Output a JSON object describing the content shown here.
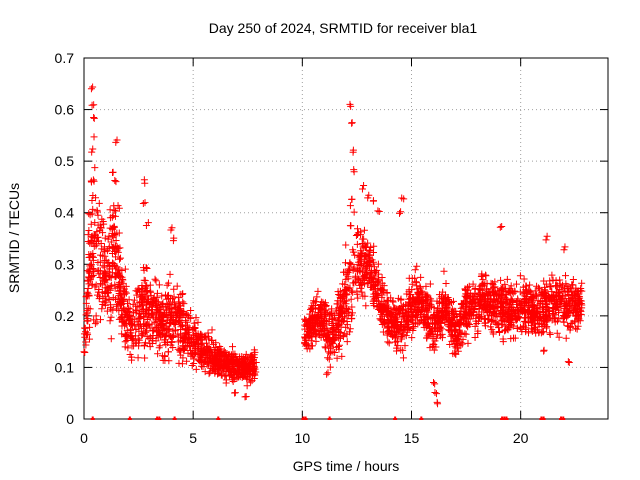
{
  "chart_data": {
    "type": "scatter",
    "title": "Day 250 of 2024, SRMTID for receiver bla1",
    "xlabel": "GPS time / hours",
    "ylabel": "SRMTID / TECUs",
    "xlim": [
      0,
      24
    ],
    "ylim": [
      0,
      0.7
    ],
    "xticks": [
      0,
      5,
      10,
      15,
      20
    ],
    "yticks": [
      0,
      0.1,
      0.2,
      0.3,
      0.4,
      0.5,
      0.6,
      0.7
    ],
    "xtick_labels": [
      "0",
      "5",
      "10",
      "15",
      "20"
    ],
    "ytick_labels": [
      "0",
      "0.1",
      "0.2",
      "0.3",
      "0.4",
      "0.5",
      "0.6",
      "0.7"
    ],
    "grid": true,
    "marker": "+",
    "color": "#ff0000",
    "series": [
      {
        "name": "SRMTID",
        "trend": [
          [
            0.0,
            0.15,
            0.04
          ],
          [
            0.3,
            0.3,
            0.12
          ],
          [
            0.5,
            0.36,
            0.14
          ],
          [
            1.0,
            0.26,
            0.09
          ],
          [
            1.4,
            0.32,
            0.11
          ],
          [
            1.8,
            0.22,
            0.07
          ],
          [
            2.2,
            0.17,
            0.06
          ],
          [
            2.7,
            0.22,
            0.08
          ],
          [
            3.2,
            0.2,
            0.07
          ],
          [
            3.6,
            0.18,
            0.06
          ],
          [
            4.2,
            0.2,
            0.07
          ],
          [
            4.8,
            0.16,
            0.05
          ],
          [
            5.5,
            0.13,
            0.04
          ],
          [
            6.2,
            0.11,
            0.03
          ],
          [
            7.0,
            0.1,
            0.03
          ],
          [
            7.9,
            0.1,
            0.03
          ],
          [
            10.2,
            0.17,
            0.03
          ],
          [
            10.8,
            0.2,
            0.05
          ],
          [
            11.3,
            0.16,
            0.05
          ],
          [
            11.8,
            0.2,
            0.06
          ],
          [
            12.2,
            0.28,
            0.12
          ],
          [
            12.5,
            0.3,
            0.08
          ],
          [
            13.0,
            0.3,
            0.06
          ],
          [
            13.5,
            0.24,
            0.05
          ],
          [
            14.0,
            0.19,
            0.05
          ],
          [
            14.5,
            0.18,
            0.05
          ],
          [
            15.0,
            0.22,
            0.05
          ],
          [
            15.5,
            0.23,
            0.05
          ],
          [
            16.0,
            0.18,
            0.05
          ],
          [
            16.5,
            0.22,
            0.05
          ],
          [
            17.0,
            0.17,
            0.05
          ],
          [
            17.5,
            0.21,
            0.05
          ],
          [
            18.0,
            0.22,
            0.05
          ],
          [
            18.5,
            0.23,
            0.05
          ],
          [
            19.0,
            0.22,
            0.05
          ],
          [
            19.5,
            0.21,
            0.05
          ],
          [
            20.0,
            0.22,
            0.05
          ],
          [
            20.5,
            0.21,
            0.05
          ],
          [
            21.0,
            0.21,
            0.05
          ],
          [
            21.5,
            0.23,
            0.05
          ],
          [
            22.0,
            0.22,
            0.06
          ],
          [
            22.5,
            0.22,
            0.05
          ],
          [
            22.8,
            0.22,
            0.04
          ]
        ],
        "segments": [
          [
            0.0,
            7.9
          ],
          [
            10.1,
            22.8
          ]
        ],
        "points_per_hour": 160,
        "highlights": [
          [
            0.35,
            0.645
          ],
          [
            0.4,
            0.61
          ],
          [
            0.45,
            0.585
          ],
          [
            0.3,
            0.46
          ],
          [
            0.35,
            0.52
          ],
          [
            0.25,
            0.4
          ],
          [
            0.6,
            0.4
          ],
          [
            1.3,
            0.48
          ],
          [
            1.5,
            0.54
          ],
          [
            1.45,
            0.46
          ],
          [
            1.6,
            0.41
          ],
          [
            2.8,
            0.46
          ],
          [
            2.75,
            0.42
          ],
          [
            2.9,
            0.38
          ],
          [
            4.0,
            0.37
          ],
          [
            4.1,
            0.35
          ],
          [
            12.2,
            0.61
          ],
          [
            12.3,
            0.57
          ],
          [
            12.35,
            0.52
          ],
          [
            12.4,
            0.48
          ],
          [
            12.25,
            0.43
          ],
          [
            12.8,
            0.45
          ],
          [
            13.0,
            0.43
          ],
          [
            13.3,
            0.42
          ],
          [
            13.5,
            0.4
          ],
          [
            14.6,
            0.43
          ],
          [
            14.5,
            0.4
          ],
          [
            11.2,
            0.12
          ],
          [
            11.15,
            0.09
          ],
          [
            16.1,
            0.05
          ],
          [
            16.15,
            0.03
          ],
          [
            16.05,
            0.07
          ],
          [
            7.4,
            0.04
          ],
          [
            6.9,
            0.05
          ],
          [
            19.1,
            0.37
          ],
          [
            21.2,
            0.35
          ],
          [
            22.0,
            0.33
          ],
          [
            21.1,
            0.13
          ],
          [
            22.2,
            0.11
          ]
        ],
        "baseline_points": [
          0.4,
          2.1,
          3.35,
          3.45,
          4.15,
          6.15,
          10.05,
          10.15,
          11.25,
          14.25,
          15.45,
          19.15,
          19.25,
          19.35,
          20.95,
          21.05,
          21.85,
          21.95
        ]
      }
    ]
  }
}
